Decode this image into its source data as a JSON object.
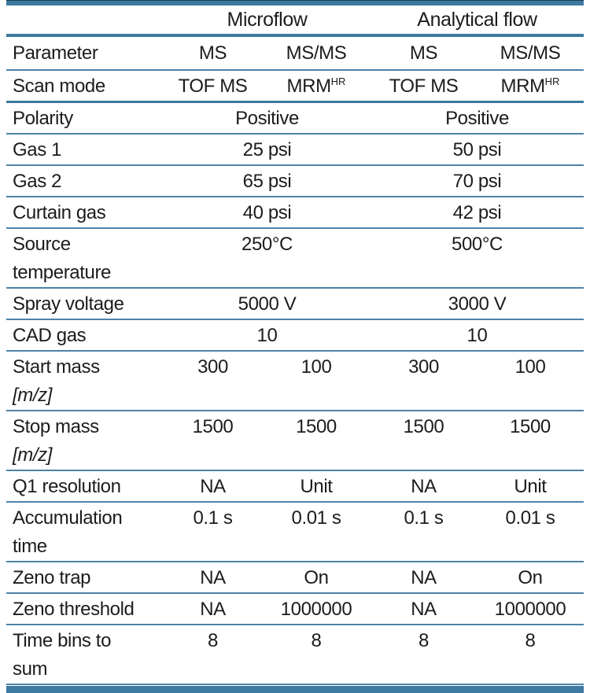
{
  "table": {
    "group_headers": [
      {
        "label": "Microflow",
        "span": 2
      },
      {
        "label": "Analytical flow",
        "span": 2
      }
    ],
    "column_headers": [
      "Parameter",
      "MS",
      "MS/MS",
      "MS",
      "MS/MS"
    ],
    "rows": [
      {
        "label": "Scan mode",
        "cells": [
          {
            "text": "TOF MS"
          },
          {
            "text": "MRM",
            "sup": "HR"
          },
          {
            "text": "TOF MS"
          },
          {
            "text": "MRM",
            "sup": "HR"
          }
        ]
      },
      {
        "label": "Polarity",
        "cells": [
          {
            "text": "Positive",
            "span": 2
          },
          {
            "text": "Positive",
            "span": 2
          }
        ]
      },
      {
        "label": "Gas 1",
        "cells": [
          {
            "text": "25 psi",
            "span": 2
          },
          {
            "text": "50 psi",
            "span": 2
          }
        ]
      },
      {
        "label": "Gas 2",
        "cells": [
          {
            "text": "65 psi",
            "span": 2
          },
          {
            "text": "70 psi",
            "span": 2
          }
        ]
      },
      {
        "label": "Curtain gas",
        "cells": [
          {
            "text": "40 psi",
            "span": 2
          },
          {
            "text": "42 psi",
            "span": 2
          }
        ]
      },
      {
        "label": "Source",
        "label2": "temperature",
        "cells": [
          {
            "text": "250°C",
            "span": 2
          },
          {
            "text": "500°C",
            "span": 2
          }
        ]
      },
      {
        "label": "Spray voltage",
        "cells": [
          {
            "text": "5000 V",
            "span": 2
          },
          {
            "text": "3000 V",
            "span": 2
          }
        ]
      },
      {
        "label": "CAD gas",
        "cells": [
          {
            "text": "10",
            "span": 2
          },
          {
            "text": "10",
            "span": 2
          }
        ]
      },
      {
        "label": "Start mass",
        "label2": "[m/z]",
        "label2_italic": true,
        "cells": [
          {
            "text": "300"
          },
          {
            "text": "100"
          },
          {
            "text": "300"
          },
          {
            "text": "100"
          }
        ]
      },
      {
        "label": "Stop mass",
        "label2": "[m/z]",
        "label2_italic": true,
        "cells": [
          {
            "text": "1500"
          },
          {
            "text": "1500"
          },
          {
            "text": "1500"
          },
          {
            "text": "1500"
          }
        ]
      },
      {
        "label": "Q1 resolution",
        "cells": [
          {
            "text": "NA"
          },
          {
            "text": "Unit"
          },
          {
            "text": "NA"
          },
          {
            "text": "Unit"
          }
        ]
      },
      {
        "label": "Accumulation",
        "label2": "time",
        "cells": [
          {
            "text": "0.1 s"
          },
          {
            "text": "0.01 s"
          },
          {
            "text": "0.1 s"
          },
          {
            "text": "0.01 s"
          }
        ]
      },
      {
        "label": "Zeno trap",
        "cells": [
          {
            "text": "NA"
          },
          {
            "text": "On"
          },
          {
            "text": "NA"
          },
          {
            "text": "On"
          }
        ]
      },
      {
        "label": "Zeno threshold",
        "cells": [
          {
            "text": "NA"
          },
          {
            "text": "1000000"
          },
          {
            "text": "NA"
          },
          {
            "text": "1000000"
          }
        ]
      },
      {
        "label": "Time bins to",
        "label2": "sum",
        "cells": [
          {
            "text": "8"
          },
          {
            "text": "8"
          },
          {
            "text": "8"
          },
          {
            "text": "8"
          }
        ]
      }
    ],
    "colors": {
      "rule_heavy": "#3d79a1",
      "rule_light": "#4d82a7",
      "rule_top_edge": "#1c4258",
      "text": "#1c1c1c"
    }
  }
}
